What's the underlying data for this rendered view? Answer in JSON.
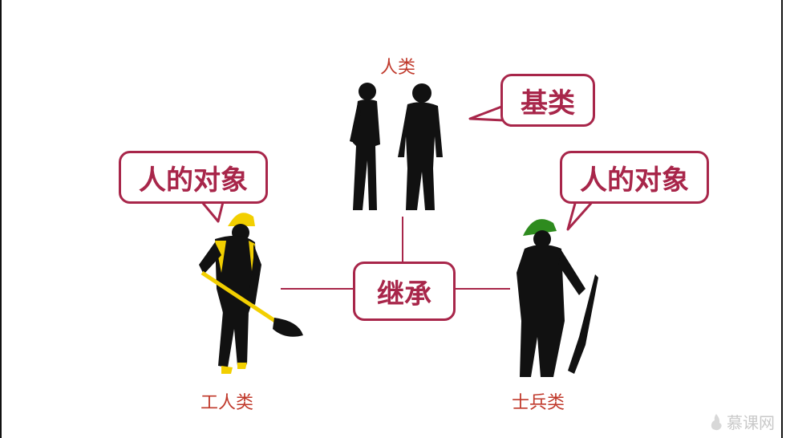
{
  "labels": {
    "base_class_name": "人类",
    "worker_class_name": "工人类",
    "soldier_class_name": "士兵类"
  },
  "bubbles": {
    "base_class": "基类",
    "inherit": "继承",
    "worker_object": "人的对象",
    "soldier_object": "人的对象"
  },
  "watermark": "慕课网",
  "colors": {
    "accent": "#a8264a",
    "label": "#c0392b",
    "worker_helmet": "#f2cf00",
    "soldier_helmet": "#2e8b1e"
  }
}
